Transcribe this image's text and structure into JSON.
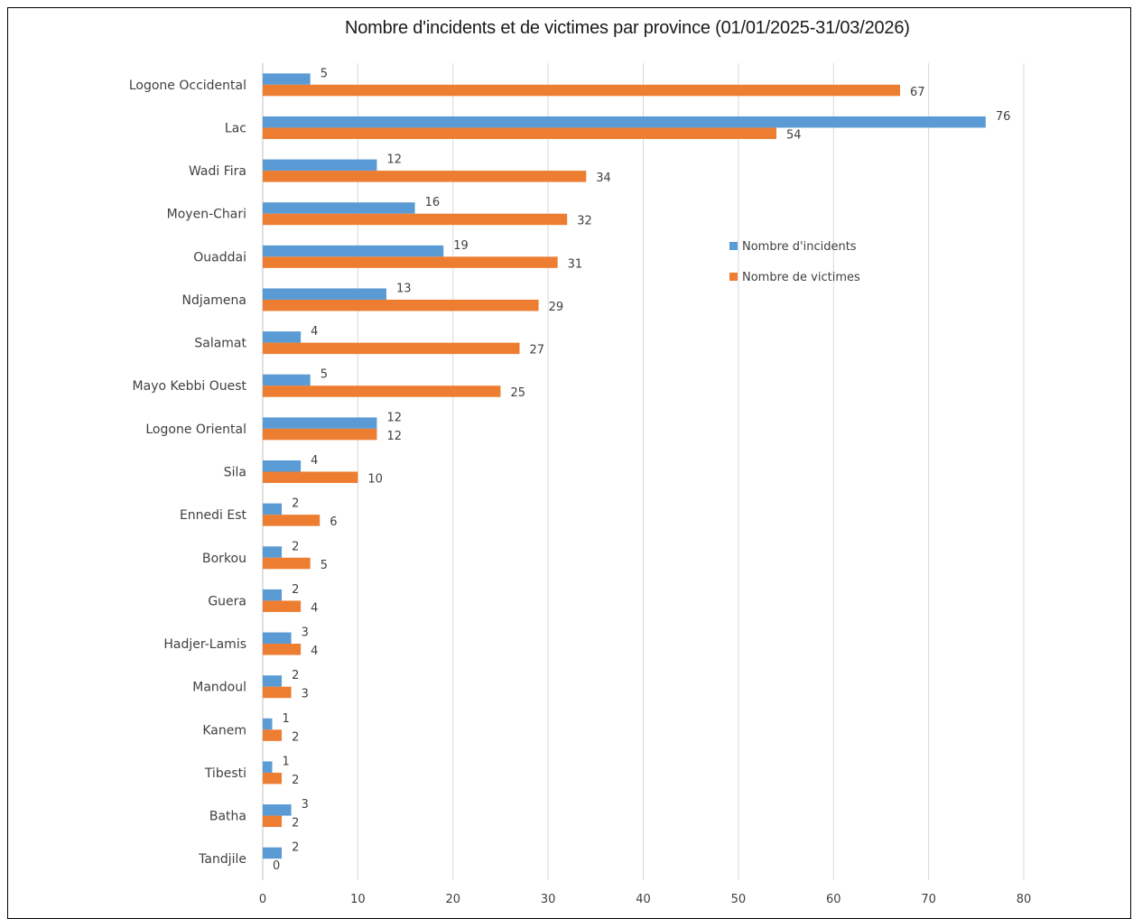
{
  "chart_data": {
    "type": "bar",
    "orientation": "horizontal",
    "title": "Nombre d'incidents et de victimes par province (01/01/2025-31/03/2026)",
    "categories": [
      "Logone Occidental",
      "Lac",
      "Wadi Fira",
      "Moyen-Chari",
      "Ouaddai",
      "Ndjamena",
      "Salamat",
      "Mayo Kebbi Ouest",
      "Logone Oriental",
      "Sila",
      "Ennedi Est",
      "Borkou",
      "Guera",
      "Hadjer-Lamis",
      "Mandoul",
      "Kanem",
      "Tibesti",
      "Batha",
      "Tandjile"
    ],
    "series": [
      {
        "name": "Nombre d'incidents",
        "color": "#5b9bd5",
        "values": [
          5,
          76,
          12,
          16,
          19,
          13,
          4,
          5,
          12,
          4,
          2,
          2,
          2,
          3,
          2,
          1,
          1,
          3,
          2
        ]
      },
      {
        "name": "Nombre de victimes",
        "color": "#ed7d31",
        "values": [
          67,
          54,
          34,
          32,
          31,
          29,
          27,
          25,
          12,
          10,
          6,
          5,
          4,
          4,
          3,
          2,
          2,
          2,
          0
        ]
      }
    ],
    "xlim": [
      0,
      80
    ],
    "xticks": [
      0,
      10,
      20,
      30,
      40,
      50,
      60,
      70,
      80
    ],
    "grid": true,
    "legend_position": "right"
  }
}
